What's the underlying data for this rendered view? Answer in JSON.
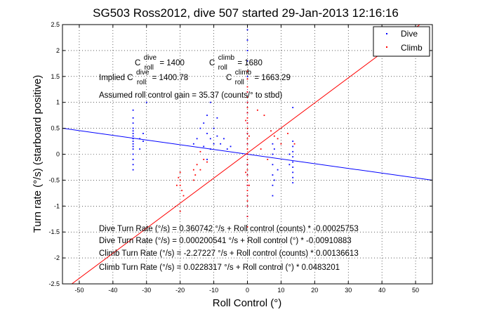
{
  "chart_data": {
    "type": "scatter",
    "title": "SG503 Ross2012, dive 507 started 29-Jan-2013 12:16:16",
    "xlabel": "Roll Control (°)",
    "ylabel": "Turn rate (°/s) (starboard positive)",
    "xlim": [
      -55,
      55
    ],
    "ylim": [
      -2.5,
      2.5
    ],
    "xticks": [
      -50,
      -40,
      -30,
      -20,
      -10,
      0,
      10,
      20,
      30,
      40,
      50
    ],
    "yticks": [
      -2.5,
      -2,
      -1.5,
      -1,
      -0.5,
      0,
      0.5,
      1,
      1.5,
      2,
      2.5
    ],
    "grid": true,
    "legend_position": "top-right",
    "colors": {
      "dive": "#0000ff",
      "climb": "#ff0000"
    },
    "legend": [
      {
        "label": "Dive",
        "color": "#0000ff"
      },
      {
        "label": "Climb",
        "color": "#ff0000"
      }
    ],
    "annotations": {
      "c_dive_sym": "C",
      "c_dive_sup": "dive",
      "c_dive_sub": "roll",
      "c_dive_val": "= 1400",
      "c_climb_sym": "C",
      "c_climb_sup": "climb",
      "c_climb_sub": "roll",
      "c_climb_val": "= 1680",
      "implied_prefix": "Implied C",
      "implied_dive_sup": "dive",
      "implied_dive_sub": "roll",
      "implied_dive_val": "= 1400.78",
      "implied_climb_sym": "C",
      "implied_climb_sup": "climb",
      "implied_climb_sub": "roll",
      "implied_climb_val": "= 1663.29",
      "gain": "Assumed roll control gain = 35.37 (counts/° to stbd)",
      "fit1": "Dive Turn Rate (°/s) = 0.360742 °/s + Roll control (counts) * -0.00025753",
      "fit2": "Dive Turn Rate (°/s) = 0.000200541 °/s + Roll control (°) * -0.00910883",
      "fit3": "Climb Turn Rate (°/s) = -2.27227 °/s + Roll control (counts) * 0.00136613",
      "fit4": "Climb Turn Rate (°/s) = 0.0228317 °/s + Roll control (°) * 0.0483201"
    },
    "fit_lines": [
      {
        "name": "Dive",
        "intercept": 0.000200541,
        "slope": -0.00910883
      },
      {
        "name": "Climb",
        "intercept": 0.0228317,
        "slope": 0.0483201
      }
    ],
    "series": [
      {
        "name": "Dive",
        "points": [
          [
            -34,
            -0.3
          ],
          [
            -34,
            -0.2
          ],
          [
            -34,
            -0.1
          ],
          [
            -34,
            0.0
          ],
          [
            -34,
            0.1
          ],
          [
            -34,
            0.15
          ],
          [
            -34,
            0.2
          ],
          [
            -34,
            0.25
          ],
          [
            -34,
            0.3
          ],
          [
            -34,
            0.35
          ],
          [
            -34,
            0.4
          ],
          [
            -34,
            0.45
          ],
          [
            -34,
            0.5
          ],
          [
            -34,
            0.6
          ],
          [
            -34,
            0.7
          ],
          [
            -34,
            0.85
          ],
          [
            -32,
            0.3
          ],
          [
            -31,
            0.25
          ],
          [
            -32,
            0.1
          ],
          [
            -30,
            1.0
          ],
          [
            -31,
            0.4
          ],
          [
            -16,
            0.2
          ],
          [
            -15,
            0.3
          ],
          [
            -14,
            0.5
          ],
          [
            -13,
            0.6
          ],
          [
            -12,
            0.4
          ],
          [
            -12,
            0.75
          ],
          [
            -11,
            1.0
          ],
          [
            -11,
            0.3
          ],
          [
            -10,
            0.5
          ],
          [
            -10,
            0.2
          ],
          [
            -9,
            0.35
          ],
          [
            -8,
            0.2
          ],
          [
            -7,
            0.3
          ],
          [
            -6,
            0.1
          ],
          [
            -5,
            0.15
          ],
          [
            -9,
            0.7
          ],
          [
            -11,
            0.1
          ],
          [
            -13,
            0.15
          ],
          [
            -12,
            -0.1
          ],
          [
            0,
            2.4
          ],
          [
            0,
            2.2
          ],
          [
            0,
            2.0
          ],
          [
            0,
            1.8
          ],
          [
            0,
            1.5
          ],
          [
            0,
            1.2
          ],
          [
            0,
            1.0
          ],
          [
            0,
            0.8
          ],
          [
            0,
            0.6
          ],
          [
            0,
            0.4
          ],
          [
            0,
            0.2
          ],
          [
            0,
            0.0
          ],
          [
            0,
            -0.2
          ],
          [
            0,
            -0.4
          ],
          [
            0,
            -0.6
          ],
          [
            0,
            -0.8
          ],
          [
            0,
            -1.0
          ],
          [
            0,
            -1.2
          ],
          [
            7.5,
            0.2
          ],
          [
            7.5,
            0.0
          ],
          [
            7.5,
            -0.2
          ],
          [
            7.5,
            -0.4
          ],
          [
            7.5,
            -0.6
          ],
          [
            7.5,
            -0.8
          ],
          [
            8,
            0.1
          ],
          [
            8,
            -0.5
          ],
          [
            9,
            -0.3
          ],
          [
            13.5,
            0.25
          ],
          [
            13.5,
            0.15
          ],
          [
            13.5,
            0.05
          ],
          [
            13.5,
            -0.05
          ],
          [
            13.5,
            -0.15
          ],
          [
            13.5,
            -0.25
          ],
          [
            13.5,
            -0.35
          ],
          [
            13.5,
            -0.45
          ],
          [
            13.5,
            -0.55
          ],
          [
            12.5,
            0.0
          ],
          [
            12.5,
            -0.2
          ],
          [
            13.5,
            0.9
          ]
        ]
      },
      {
        "name": "Climb",
        "points": [
          [
            -20,
            -0.35
          ],
          [
            -20,
            -0.5
          ],
          [
            -20,
            -0.6
          ],
          [
            -19.5,
            -0.7
          ],
          [
            -20,
            -1.1
          ],
          [
            -19,
            -0.8
          ],
          [
            -20.5,
            -0.45
          ],
          [
            -21,
            -0.6
          ],
          [
            -16,
            -0.3
          ],
          [
            -15.5,
            -0.4
          ],
          [
            -16,
            -0.5
          ],
          [
            -15,
            -0.2
          ],
          [
            -14,
            -0.3
          ],
          [
            -13,
            -0.1
          ],
          [
            -12,
            -0.15
          ],
          [
            -14,
            0.05
          ],
          [
            0,
            0.4
          ],
          [
            0,
            0.3
          ],
          [
            0,
            0.2
          ],
          [
            0,
            0.1
          ],
          [
            0,
            0.0
          ],
          [
            0,
            -0.1
          ],
          [
            0,
            -0.2
          ],
          [
            0,
            -0.3
          ],
          [
            0,
            -0.4
          ],
          [
            0,
            -0.5
          ],
          [
            0,
            -0.6
          ],
          [
            0,
            -0.7
          ],
          [
            0,
            -0.8
          ],
          [
            0,
            -0.9
          ],
          [
            0,
            -1.0
          ],
          [
            0,
            -1.2
          ],
          [
            0,
            -1.4
          ],
          [
            0,
            0.5
          ],
          [
            0,
            0.6
          ],
          [
            0,
            0.7
          ],
          [
            0,
            0.8
          ],
          [
            0,
            0.9
          ],
          [
            0,
            1.0
          ],
          [
            0,
            1.1
          ],
          [
            0,
            1.2
          ],
          [
            0,
            1.3
          ],
          [
            0,
            1.45
          ],
          [
            0,
            1.6
          ],
          [
            -0.5,
            0.65
          ],
          [
            0.5,
            0.35
          ],
          [
            -0.5,
            -0.35
          ],
          [
            0.5,
            -0.6
          ],
          [
            3,
            0.85
          ],
          [
            5,
            0.75
          ],
          [
            7,
            0.45
          ],
          [
            8,
            0.35
          ],
          [
            9,
            0.3
          ],
          [
            10,
            0.2
          ],
          [
            12,
            0.4
          ],
          [
            14,
            0.2
          ],
          [
            6,
            -0.1
          ],
          [
            4,
            0.1
          ]
        ]
      }
    ]
  }
}
